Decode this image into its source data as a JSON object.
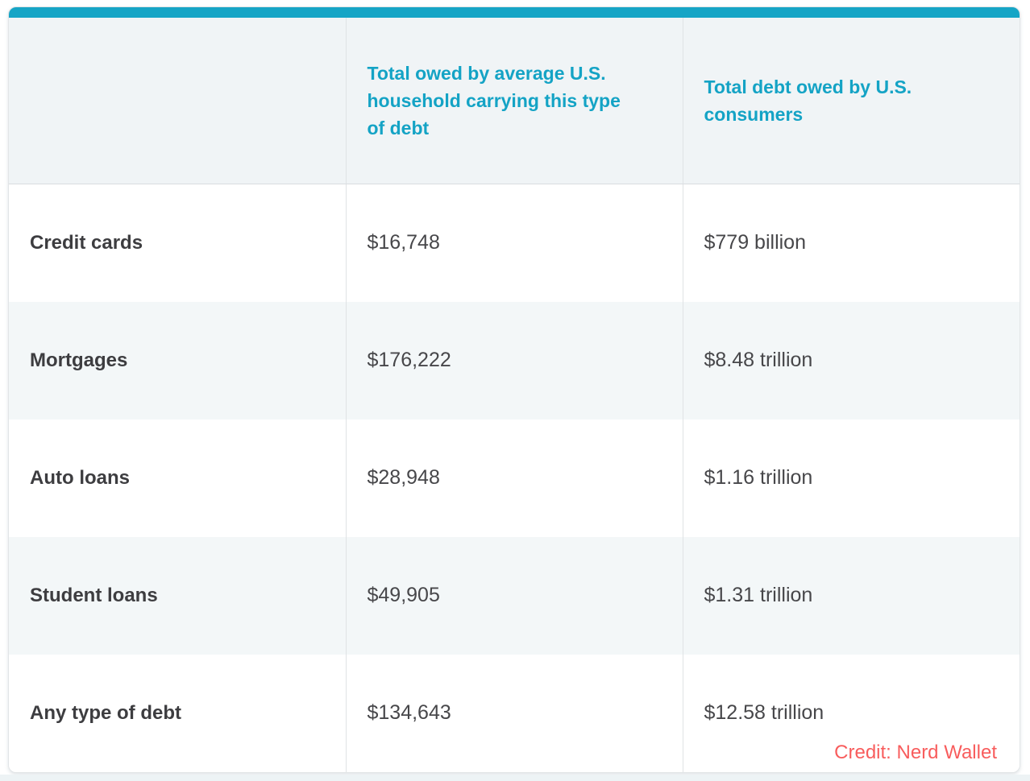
{
  "theme": {
    "accent_teal": "#16a5c6",
    "header_text": "#14a3c5",
    "header_bg": "#f0f4f6",
    "row_bg_white": "#ffffff",
    "row_bg_alt": "#f3f7f8",
    "card_border": "#e2e5e7",
    "divider": "#e0e3e5",
    "header_divider": "#d9dde0",
    "label_text": "#3d3d40",
    "value_text": "#47474a",
    "credit_text": "#f85d5d",
    "page_strip": "#edf3f5"
  },
  "chart_data": {
    "type": "table",
    "columns": [
      "",
      "Total owed by average U.S. household carrying this type of debt",
      "Total debt owed by U.S. consumers"
    ],
    "rows": [
      [
        "Credit cards",
        "$16,748",
        "$779 billion"
      ],
      [
        "Mortgages",
        "$176,222",
        "$8.48 trillion"
      ],
      [
        "Auto loans",
        "$28,948",
        "$1.16 trillion"
      ],
      [
        "Student loans",
        "$49,905",
        "$1.31 trillion"
      ],
      [
        "Any type of debt",
        "$134,643",
        "$12.58 trillion"
      ]
    ],
    "numeric": {
      "household_avg_usd": [
        16748,
        176222,
        28948,
        49905,
        134643
      ],
      "consumer_total_usd": [
        779000000000,
        8480000000000,
        1160000000000,
        1310000000000,
        12580000000000
      ]
    },
    "annotations": [
      "Credit: Nerd Wallet"
    ]
  },
  "credit": {
    "text": "Credit: Nerd Wallet"
  }
}
